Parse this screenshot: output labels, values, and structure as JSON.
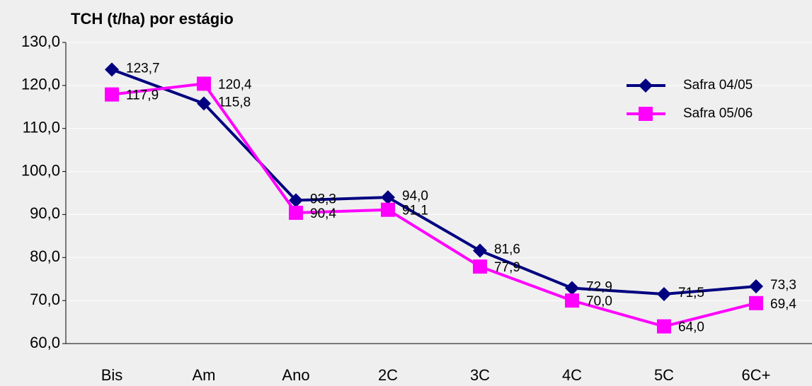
{
  "chart_data": {
    "type": "line",
    "title": "TCH (t/ha) por estágio",
    "categories": [
      "Bis",
      "Am",
      "Ano",
      "2C",
      "3C",
      "4C",
      "5C",
      "6C+"
    ],
    "series": [
      {
        "name": "Safra 04/05",
        "color": "#000080",
        "marker": "diamond",
        "values": [
          123.7,
          115.8,
          93.3,
          94.0,
          81.6,
          72.9,
          71.5,
          73.3
        ],
        "value_labels": [
          "123,7",
          "115,8",
          "93,3",
          "94,0",
          "81,6",
          "72,9",
          "71,5",
          "73,3"
        ]
      },
      {
        "name": "Safra 05/06",
        "color": "#ff00ff",
        "marker": "square",
        "values": [
          117.9,
          120.4,
          90.4,
          91.1,
          77.9,
          70.0,
          64.0,
          69.4
        ],
        "value_labels": [
          "117,9",
          "120,4",
          "90,4",
          "91,1",
          "77,9",
          "70,0",
          "64,0",
          "69,4"
        ]
      }
    ],
    "ylim": [
      60,
      130
    ],
    "yticks": [
      {
        "value": 60,
        "label": "60,0"
      },
      {
        "value": 70,
        "label": "70,0"
      },
      {
        "value": 80,
        "label": "80,0"
      },
      {
        "value": 90,
        "label": "90,0"
      },
      {
        "value": 100,
        "label": "100,0"
      },
      {
        "value": 110,
        "label": "110,0"
      },
      {
        "value": 120,
        "label": "120,0"
      },
      {
        "value": 130,
        "label": "130,0"
      }
    ],
    "grid": true,
    "legend": "top-right"
  }
}
